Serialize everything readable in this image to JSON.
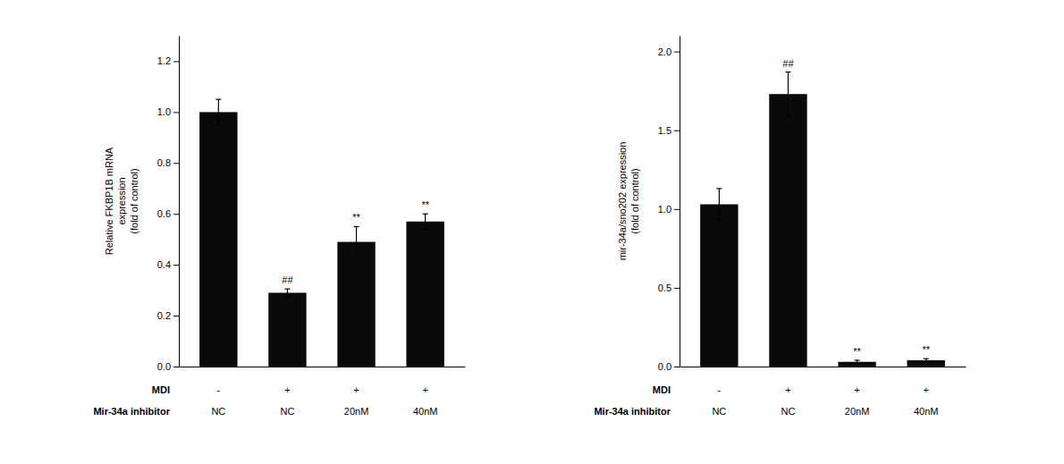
{
  "chart_data": [
    {
      "type": "bar",
      "ylabel": "Relative FKBP1B mRNA\nexpression\n(fold of control)",
      "category_levels": [
        "MDI",
        "Mir-34a inhibitor"
      ],
      "categories": [
        [
          "-",
          "NC"
        ],
        [
          "+",
          "NC"
        ],
        [
          "+",
          "20nM"
        ],
        [
          "+",
          "40nM"
        ]
      ],
      "values": [
        1.0,
        0.29,
        0.49,
        0.57
      ],
      "errors": [
        0.05,
        0.015,
        0.06,
        0.03
      ],
      "annotations": [
        null,
        "##",
        "**",
        "**"
      ],
      "color": "#0a0a0a",
      "ylim": [
        0,
        1.3
      ],
      "yticks": [
        {
          "value": 0.0,
          "label": "0.0"
        },
        0.2,
        0.4,
        0.6,
        0.8,
        {
          "value": 1.0,
          "label": "1.0"
        },
        1.2
      ],
      "grid": false
    },
    {
      "type": "bar",
      "ylabel": "mir-34a/sno202 expression\n(fold of control)",
      "category_levels": [
        "MDI",
        "Mir-34a inhibitor"
      ],
      "categories": [
        [
          "-",
          "NC"
        ],
        [
          "+",
          "NC"
        ],
        [
          "+",
          "20nM"
        ],
        [
          "+",
          "40nM"
        ]
      ],
      "values": [
        1.03,
        1.73,
        0.03,
        0.04
      ],
      "errors": [
        0.1,
        0.14,
        0.01,
        0.01
      ],
      "annotations": [
        null,
        "##",
        "**",
        "**"
      ],
      "color": "#0a0a0a",
      "ylim": [
        0,
        2.1
      ],
      "yticks": [
        {
          "value": 0.0,
          "label": "0.0"
        },
        0.5,
        {
          "value": 1.0,
          "label": "1.0"
        },
        1.5,
        {
          "value": 2.0,
          "label": "2.0"
        }
      ],
      "grid": false
    }
  ]
}
